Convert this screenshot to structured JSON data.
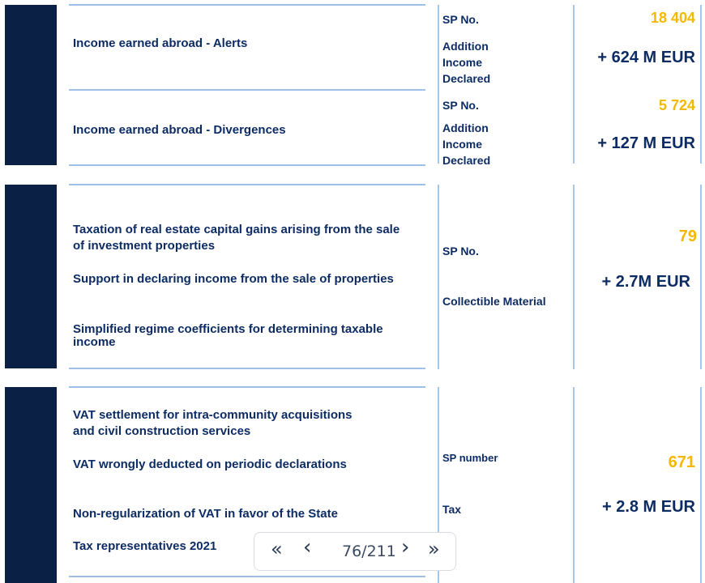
{
  "section1": {
    "row1": {
      "title": "Income earned abroad - Alerts",
      "sp_label": "SP No.",
      "sp_value": "18 404",
      "amount_label": [
        "Addition",
        "Income",
        "Declared"
      ],
      "amount": "+ 624 M EUR"
    },
    "row2": {
      "title": "Income earned abroad - Divergences",
      "sp_label": "SP No.",
      "sp_value": "5 724",
      "amount_label": [
        "Addition",
        "Income",
        "Declared"
      ],
      "amount": "+ 127 M EUR"
    }
  },
  "section2": {
    "items": [
      "Taxation of real estate capital gains arising from the sale",
      "of investment properties",
      "Support in declaring income from the sale of properties",
      "Simplified regime coefficients for determining taxable",
      "income"
    ],
    "sp_label": "SP No.",
    "sp_value": "79",
    "amount_label": "Collectible Material",
    "amount": "+ 2.7M EUR"
  },
  "section3": {
    "items": [
      "VAT settlement for intra-community acquisitions",
      "and civil construction services",
      "VAT wrongly deducted on periodic declarations",
      "Non-regularization of VAT in favor of the State",
      "Tax representatives 2021"
    ],
    "sp_label": "SP number",
    "sp_value": "671",
    "amount_label": "Tax",
    "amount": "+ 2.8 M EUR"
  },
  "pager": {
    "first": "«",
    "prev": "‹",
    "page": "76/211",
    "next": "›",
    "last": "»"
  }
}
